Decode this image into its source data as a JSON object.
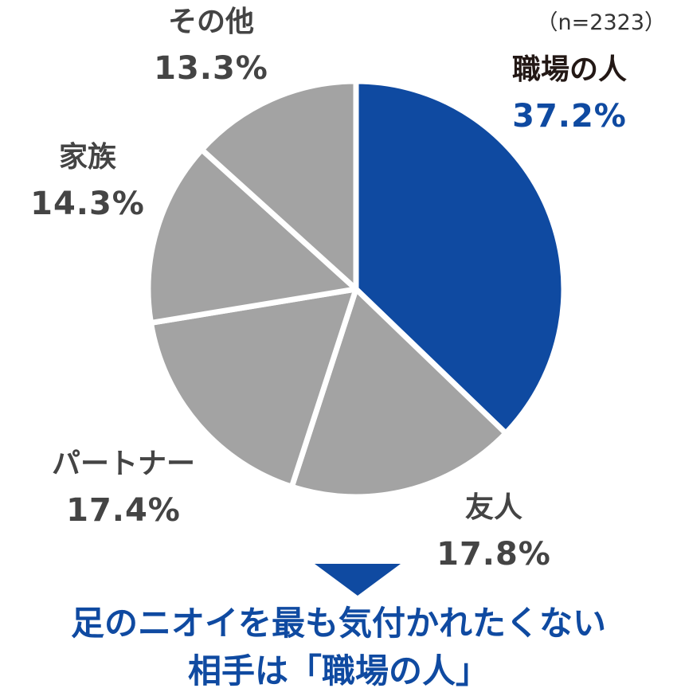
{
  "sample_note": "（n=2323）",
  "chart_data": {
    "type": "pie",
    "title": "",
    "start_angle_deg": 0,
    "direction": "clockwise",
    "categories": [
      "職場の人",
      "友人",
      "パートナー",
      "家族",
      "その他"
    ],
    "values": [
      37.2,
      17.8,
      17.4,
      14.3,
      13.3
    ],
    "labels": [
      "37.2%",
      "17.8%",
      "17.4%",
      "14.3%",
      "13.3%"
    ],
    "colors": [
      "#0f4aa1",
      "#a3a3a3",
      "#a3a3a3",
      "#a3a3a3",
      "#a3a3a3"
    ],
    "highlight": "職場の人",
    "n": 2323
  },
  "labels": {
    "workplace": {
      "name": "職場の人",
      "pct": "37.2%"
    },
    "friend": {
      "name": "友人",
      "pct": "17.8%"
    },
    "partner": {
      "name": "パートナー",
      "pct": "17.4%"
    },
    "family": {
      "name": "家族",
      "pct": "14.3%"
    },
    "other": {
      "name": "その他",
      "pct": "13.3%"
    }
  },
  "conclusion": {
    "line1": "足のニオイを最も気付かれたくない",
    "line2": "相手は「職場の人」"
  },
  "colors": {
    "accent": "#0f4aa1",
    "slice_gray": "#a3a3a3",
    "label_text": "#444444",
    "highlight_name": "#231815"
  }
}
